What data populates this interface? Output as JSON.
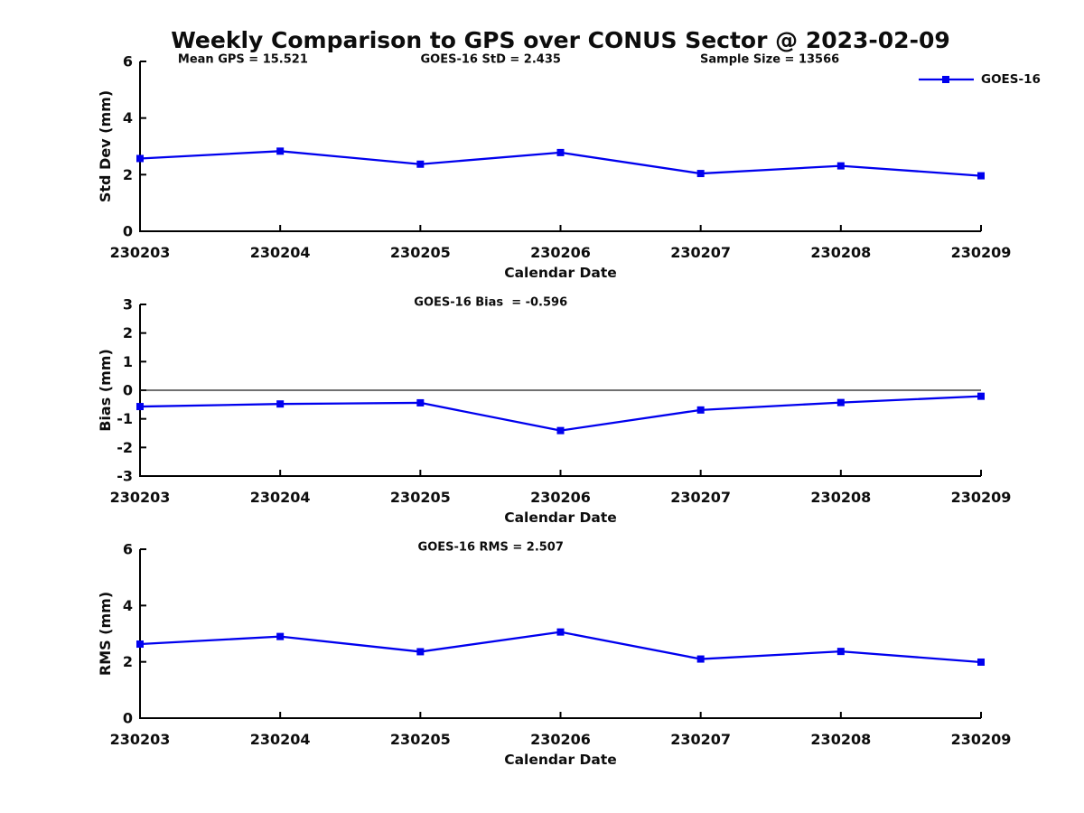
{
  "title": "Weekly Comparison to GPS over CONUS Sector @ 2023-02-09",
  "colors": {
    "series": "#0000EE",
    "axis": "#000000",
    "text": "#0d0d0d",
    "zero_line": "#1a1a1a"
  },
  "chart_data": [
    {
      "type": "line",
      "name": "std-dev",
      "ylabel": "Std Dev (mm)",
      "xlabel": "Calendar Date",
      "ylim": [
        0,
        6
      ],
      "yticks": [
        0,
        2,
        4,
        6
      ],
      "grid": false,
      "categories": [
        "230203",
        "230204",
        "230205",
        "230206",
        "230207",
        "230208",
        "230209"
      ],
      "series": [
        {
          "name": "GOES-16",
          "values": [
            2.57,
            2.83,
            2.37,
            2.78,
            2.04,
            2.31,
            1.96
          ]
        }
      ],
      "annotations": [
        {
          "text": "Mean GPS = 15.521",
          "pos": "left"
        },
        {
          "text": "GOES-16 StD = 2.435",
          "pos": "center"
        },
        {
          "text": "Sample Size = 13566",
          "pos": "right"
        }
      ],
      "legend": {
        "label": "GOES-16",
        "position": "top-right"
      }
    },
    {
      "type": "line",
      "name": "bias",
      "ylabel": "Bias (mm)",
      "xlabel": "Calendar Date",
      "ylim": [
        -3,
        3
      ],
      "yticks": [
        -3,
        -2,
        -1,
        0,
        1,
        2,
        3
      ],
      "zero_line": true,
      "grid": false,
      "categories": [
        "230203",
        "230204",
        "230205",
        "230206",
        "230207",
        "230208",
        "230209"
      ],
      "series": [
        {
          "name": "GOES-16",
          "values": [
            -0.57,
            -0.48,
            -0.44,
            -1.41,
            -0.69,
            -0.43,
            -0.21
          ]
        }
      ],
      "annotations": [
        {
          "text": "GOES-16 Bias  = -0.596",
          "pos": "center"
        }
      ]
    },
    {
      "type": "line",
      "name": "rms",
      "ylabel": "RMS (mm)",
      "xlabel": "Calendar Date",
      "ylim": [
        0,
        6
      ],
      "yticks": [
        0,
        2,
        4,
        6
      ],
      "grid": false,
      "categories": [
        "230203",
        "230204",
        "230205",
        "230206",
        "230207",
        "230208",
        "230209"
      ],
      "series": [
        {
          "name": "GOES-16",
          "values": [
            2.63,
            2.9,
            2.36,
            3.06,
            2.1,
            2.37,
            1.99
          ]
        }
      ],
      "annotations": [
        {
          "text": "GOES-16 RMS = 2.507",
          "pos": "center"
        }
      ]
    }
  ]
}
